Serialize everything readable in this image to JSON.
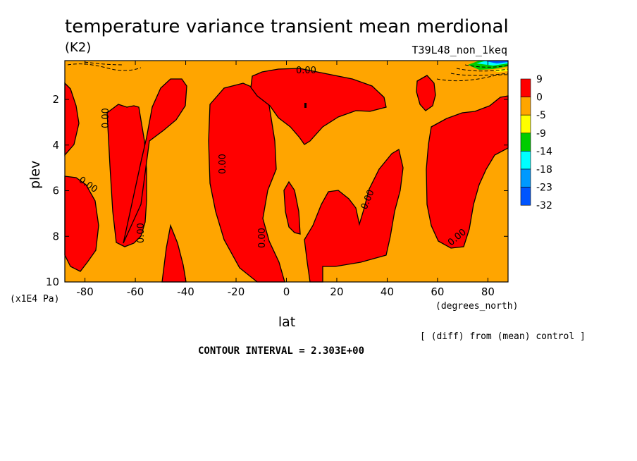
{
  "chart_data": {
    "type": "contour",
    "title": "temperature variance transient mean merdional",
    "units": "(K2)",
    "run_label": "T39L48_non_1keq",
    "xlabel": "lat",
    "x_units": "(degrees_north)",
    "ylabel": "plev",
    "y_units": "(x1E4 Pa)",
    "xlim": [
      -88,
      88
    ],
    "ylim": [
      10,
      0.3
    ],
    "x_ticks": [
      -80,
      -60,
      -40,
      -20,
      0,
      20,
      40,
      60,
      80
    ],
    "x_tick_labels": [
      "-80",
      "-60",
      "-40",
      "-20",
      "0",
      "20",
      "40",
      "60",
      "80"
    ],
    "y_ticks": [
      2,
      4,
      6,
      8,
      10
    ],
    "y_tick_labels": [
      "2",
      "4",
      "6",
      "8",
      "10"
    ],
    "contour_label": "0.00",
    "colorbar": {
      "labels": [
        "9",
        "0",
        "-5",
        "-9",
        "-14",
        "-18",
        "-23",
        "-32"
      ],
      "colors": [
        "#ff0000",
        "#ffa500",
        "#ffff00",
        "#00cc00",
        "#00ffff",
        "#0099ff",
        "#0055ff"
      ]
    },
    "background_color": "#ffa500",
    "positive_color": "#ff0000",
    "footnote": "[ (diff) from (mean) control ]",
    "contour_interval": "CONTOUR INTERVAL = 2.303E+00"
  }
}
